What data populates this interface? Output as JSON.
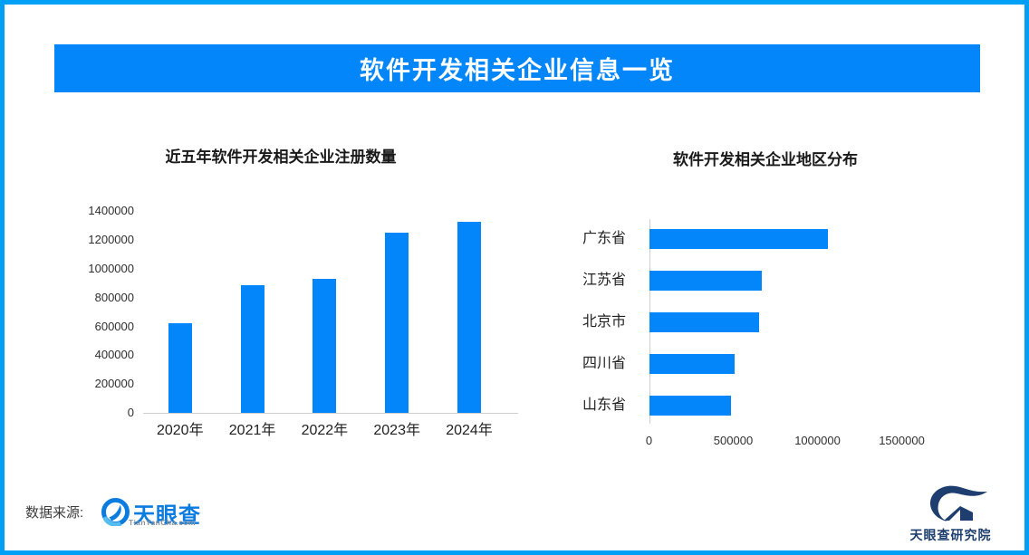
{
  "banner": {
    "title": "软件开发相关企业信息一览"
  },
  "colors": {
    "border": "#00a0f6",
    "banner_bg": "#0486fb",
    "banner_text": "#ffffff",
    "bar": "#0486fb",
    "axis_line": "#cfcfcf",
    "brand_blue": "#0a7ce0",
    "institute_navy": "#1d3e6e"
  },
  "source": {
    "label": "数据来源:",
    "brand_name": "天眼查",
    "brand_domain": "TianYanCha.com"
  },
  "institute": {
    "name": "天眼查研究院"
  },
  "chart_data": [
    {
      "type": "bar",
      "orientation": "vertical",
      "title": "近五年软件开发相关企业注册数量",
      "categories": [
        "2020年",
        "2021年",
        "2022年",
        "2023年",
        "2024年"
      ],
      "values": [
        625000,
        885000,
        930000,
        1250000,
        1330000
      ],
      "ylim": [
        0,
        1400000
      ],
      "yticks": [
        0,
        200000,
        400000,
        600000,
        800000,
        1000000,
        1200000,
        1400000
      ],
      "xlabel": "",
      "ylabel": "",
      "grid": false,
      "legend": false
    },
    {
      "type": "bar",
      "orientation": "horizontal",
      "title": "软件开发相关企业地区分布",
      "categories": [
        "广东省",
        "江苏省",
        "北京市",
        "四川省",
        "山东省"
      ],
      "values": [
        1060000,
        665000,
        650000,
        505000,
        485000
      ],
      "xlim": [
        0,
        2000000
      ],
      "xticks": [
        0,
        500000,
        1000000,
        1500000
      ],
      "xlabel": "",
      "ylabel": "",
      "grid": false,
      "legend": false
    }
  ]
}
